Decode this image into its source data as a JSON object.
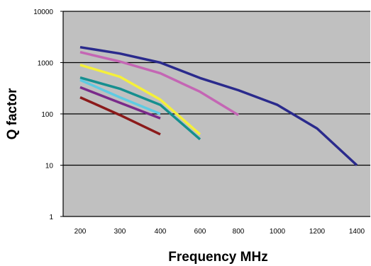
{
  "chart_data": {
    "type": "line",
    "title": "",
    "xlabel": "Frequency MHz",
    "ylabel": "Q factor",
    "y_scale": "log",
    "ylim": [
      1,
      10000
    ],
    "y_ticks": [
      1,
      10,
      100,
      1000,
      10000
    ],
    "y_tick_labels": [
      "1",
      "10",
      "100",
      "1000",
      "10000"
    ],
    "categories": [
      "200",
      "300",
      "400",
      "600",
      "800",
      "1000",
      "1200",
      "1400"
    ],
    "grid": "horizontal",
    "legend": "none",
    "plot_background": "#c0c0c0",
    "series": [
      {
        "color": "#2a2a8c",
        "x": [
          "200",
          "300",
          "400",
          "600",
          "800",
          "1000",
          "1200",
          "1400"
        ],
        "values": [
          2000,
          1500,
          1000,
          500,
          290,
          150,
          52,
          10
        ]
      },
      {
        "color": "#c466b4",
        "x": [
          "200",
          "300",
          "400",
          "600",
          "800"
        ],
        "values": [
          1600,
          1050,
          620,
          270,
          95
        ]
      },
      {
        "color": "#f5f03a",
        "x": [
          "200",
          "300",
          "400",
          "600"
        ],
        "values": [
          900,
          530,
          190,
          40
        ]
      },
      {
        "color": "#168f8f",
        "x": [
          "200",
          "300",
          "400",
          "600"
        ],
        "values": [
          510,
          310,
          150,
          32
        ]
      },
      {
        "color": "#5ecbe3",
        "x": [
          "200",
          "300",
          "400"
        ],
        "values": [
          460,
          210,
          100
        ]
      },
      {
        "color": "#7a2a8a",
        "x": [
          "200",
          "300",
          "400"
        ],
        "values": [
          330,
          165,
          82
        ]
      },
      {
        "color": "#8b1a1a",
        "x": [
          "200",
          "300",
          "400"
        ],
        "values": [
          210,
          95,
          40
        ]
      }
    ]
  }
}
